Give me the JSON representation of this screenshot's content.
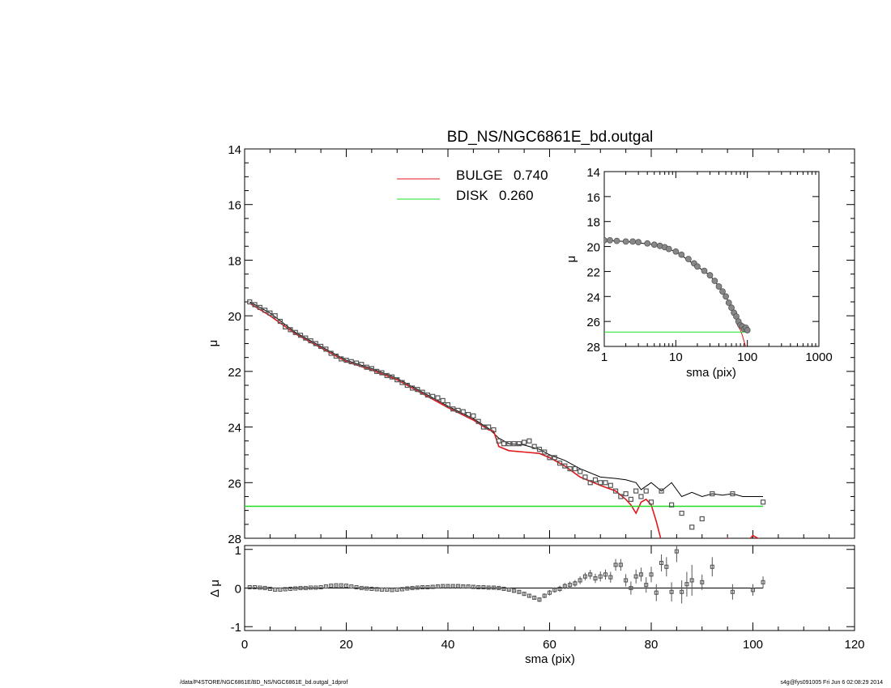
{
  "colors": {
    "bulge": "#e0181b",
    "disk": "#22dd22",
    "data": "#555555",
    "total": "#000000",
    "frame": "#000000"
  },
  "footer": {
    "left": "/data/P4STORE/NGC6861E/BD_NS/NGC6861E_bd.outgal_1dprof",
    "right": "s4g@fys091005  Fri Jun  6 02:08:29 2014"
  },
  "chart_data": [
    {
      "type": "line",
      "title": "BD_NS/NGC6861E_bd.outgal",
      "xlabel": "",
      "ylabel": "μ",
      "xlim": [
        0,
        120
      ],
      "ylim": [
        28,
        14
      ],
      "y_inverted": true,
      "yticks": [
        14,
        16,
        18,
        20,
        22,
        24,
        26,
        28
      ],
      "legend_placement": "top-center",
      "legend": [
        {
          "name": "BULGE",
          "value": "0.740",
          "color": "#e0181b"
        },
        {
          "name": "DISK",
          "value": "0.260",
          "color": "#22dd22"
        }
      ],
      "observed_points": {
        "x": [
          1,
          2,
          3,
          4,
          5,
          6,
          7,
          8,
          9,
          10,
          11,
          12,
          13,
          14,
          15,
          16,
          17,
          18,
          19,
          20,
          21,
          22,
          23,
          24,
          25,
          26,
          27,
          28,
          29,
          30,
          31,
          32,
          33,
          34,
          35,
          36,
          37,
          38,
          39,
          40,
          41,
          42,
          43,
          44,
          45,
          46,
          47,
          48,
          49,
          50,
          51,
          52,
          53,
          54,
          55,
          56,
          57,
          58,
          59,
          60,
          61,
          62,
          63,
          64,
          65,
          66,
          67,
          68,
          69,
          70,
          71,
          72,
          73,
          74,
          75,
          76,
          77,
          78,
          79,
          80,
          82,
          84,
          86,
          88,
          90,
          92,
          96,
          102
        ],
        "y": [
          19.5,
          19.6,
          19.7,
          19.8,
          19.9,
          20.0,
          20.2,
          20.4,
          20.5,
          20.6,
          20.7,
          20.8,
          20.9,
          21.0,
          21.1,
          21.2,
          21.35,
          21.45,
          21.55,
          21.6,
          21.65,
          21.7,
          21.75,
          21.85,
          21.9,
          22.0,
          22.05,
          22.15,
          22.2,
          22.3,
          22.4,
          22.5,
          22.6,
          22.65,
          22.75,
          22.85,
          22.9,
          22.95,
          23.05,
          23.2,
          23.35,
          23.4,
          23.45,
          23.55,
          23.6,
          23.8,
          24.0,
          24.0,
          24.1,
          24.5,
          24.6,
          24.6,
          24.6,
          24.6,
          24.55,
          24.5,
          24.7,
          24.8,
          24.9,
          25.1,
          25.1,
          25.3,
          25.4,
          25.5,
          25.5,
          25.6,
          25.8,
          26.0,
          25.9,
          26.0,
          26.0,
          26.1,
          26.3,
          26.5,
          26.4,
          26.6,
          26.3,
          26.5,
          26.3,
          26.7,
          26.3,
          26.8,
          27.1,
          27.6,
          27.3,
          26.4,
          26.4,
          26.7
        ]
      },
      "series": [
        {
          "name": "",
          "color": "#000000",
          "x": [
            1,
            5,
            10,
            15,
            20,
            25,
            30,
            35,
            40,
            45,
            48,
            50,
            52,
            55,
            58,
            60,
            63,
            66,
            70,
            73,
            75,
            77,
            78,
            80,
            82,
            84,
            86,
            88,
            90,
            92,
            94,
            96,
            98,
            100,
            102
          ],
          "y": [
            19.5,
            19.9,
            20.6,
            21.1,
            21.6,
            21.9,
            22.25,
            22.75,
            23.25,
            23.7,
            24.05,
            24.4,
            24.6,
            24.65,
            24.8,
            25.0,
            25.2,
            25.5,
            25.8,
            25.85,
            25.9,
            26.0,
            26.25,
            26.0,
            26.3,
            26.0,
            26.5,
            26.35,
            26.5,
            26.4,
            26.45,
            26.4,
            26.5,
            26.5,
            26.5
          ]
        },
        {
          "name": "BULGE",
          "color": "#e0181b",
          "x": [
            1,
            5,
            10,
            15,
            20,
            25,
            30,
            35,
            40,
            45,
            48,
            49,
            50,
            52,
            55,
            58,
            60,
            63,
            66,
            70,
            73,
            75,
            76,
            77,
            78,
            79,
            80,
            81,
            82,
            83,
            84,
            86,
            88,
            90,
            92,
            94,
            95,
            97,
            99,
            100,
            102
          ],
          "y": [
            19.55,
            20.0,
            20.65,
            21.15,
            21.65,
            21.95,
            22.3,
            22.8,
            23.3,
            23.75,
            24.1,
            24.15,
            24.7,
            24.85,
            24.9,
            24.95,
            25.1,
            25.4,
            25.8,
            26.1,
            26.3,
            26.6,
            26.8,
            27.1,
            26.7,
            26.6,
            26.8,
            27.4,
            28.1,
            28.6,
            28.8,
            29.5,
            28.3,
            28.5,
            28.3,
            28.1,
            28.0,
            28.4,
            28.1,
            27.9,
            28.1
          ]
        },
        {
          "name": "DISK",
          "color": "#22dd22",
          "x": [
            0,
            102
          ],
          "y": [
            26.85,
            26.85
          ]
        }
      ]
    },
    {
      "type": "scatter",
      "title": "",
      "xlabel": "sma (pix)",
      "ylabel": "Δ μ",
      "xlim": [
        0,
        120
      ],
      "ylim": [
        -1.1,
        1.1
      ],
      "yticks": [
        1,
        0,
        -1
      ],
      "xticks": [
        0,
        20,
        40,
        60,
        80,
        100,
        120
      ],
      "reference_line": {
        "x": [
          0,
          102
        ],
        "y": [
          0,
          0
        ]
      },
      "points": {
        "x": [
          1,
          2,
          3,
          4,
          5,
          6,
          7,
          8,
          9,
          10,
          11,
          12,
          13,
          14,
          15,
          16,
          17,
          18,
          19,
          20,
          21,
          22,
          23,
          24,
          25,
          26,
          27,
          28,
          29,
          30,
          31,
          32,
          33,
          34,
          35,
          36,
          37,
          38,
          39,
          40,
          41,
          42,
          43,
          44,
          45,
          46,
          47,
          48,
          49,
          50,
          51,
          52,
          53,
          54,
          55,
          56,
          57,
          58,
          59,
          60,
          61,
          62,
          63,
          64,
          65,
          66,
          67,
          68,
          69,
          70,
          71,
          72,
          73,
          74,
          75,
          76,
          77,
          78,
          79,
          80,
          81,
          82,
          83,
          84,
          85,
          86,
          87,
          88,
          90,
          92,
          96,
          100,
          102
        ],
        "y": [
          0.02,
          0.02,
          0.01,
          0.0,
          -0.02,
          -0.04,
          -0.04,
          -0.03,
          -0.02,
          -0.01,
          0.0,
          0.0,
          0.01,
          0.01,
          0.02,
          0.04,
          0.06,
          0.07,
          0.07,
          0.06,
          0.04,
          0.02,
          0.0,
          -0.01,
          -0.02,
          -0.03,
          -0.04,
          -0.04,
          -0.05,
          -0.04,
          -0.03,
          -0.01,
          0.0,
          0.01,
          0.02,
          0.02,
          0.03,
          0.04,
          0.05,
          0.05,
          0.05,
          0.05,
          0.04,
          0.04,
          0.03,
          0.02,
          0.02,
          0.01,
          0.01,
          0.0,
          -0.02,
          -0.04,
          -0.07,
          -0.1,
          -0.15,
          -0.2,
          -0.25,
          -0.3,
          -0.2,
          -0.12,
          -0.05,
          -0.02,
          0.05,
          0.08,
          0.12,
          0.2,
          0.3,
          0.35,
          0.25,
          0.3,
          0.35,
          0.28,
          0.6,
          0.6,
          0.2,
          0.0,
          0.3,
          0.35,
          0.08,
          0.35,
          -0.12,
          0.65,
          0.55,
          -0.1,
          0.95,
          -0.1,
          0.1,
          0.2,
          0.15,
          0.55,
          -0.1,
          -0.05,
          0.15
        ],
        "err": [
          0.02,
          0.02,
          0.02,
          0.02,
          0.02,
          0.02,
          0.02,
          0.02,
          0.02,
          0.02,
          0.02,
          0.02,
          0.02,
          0.02,
          0.02,
          0.02,
          0.02,
          0.02,
          0.02,
          0.02,
          0.02,
          0.02,
          0.02,
          0.02,
          0.02,
          0.02,
          0.02,
          0.02,
          0.02,
          0.02,
          0.02,
          0.03,
          0.03,
          0.03,
          0.03,
          0.03,
          0.03,
          0.03,
          0.03,
          0.03,
          0.03,
          0.03,
          0.03,
          0.03,
          0.03,
          0.03,
          0.03,
          0.03,
          0.03,
          0.04,
          0.04,
          0.05,
          0.05,
          0.05,
          0.05,
          0.05,
          0.05,
          0.06,
          0.06,
          0.07,
          0.07,
          0.08,
          0.08,
          0.09,
          0.09,
          0.1,
          0.1,
          0.12,
          0.12,
          0.13,
          0.13,
          0.14,
          0.15,
          0.15,
          0.16,
          0.17,
          0.18,
          0.18,
          0.2,
          0.2,
          0.22,
          0.22,
          0.25,
          0.25,
          0.28,
          0.3,
          0.32,
          0.4,
          0.2,
          0.25,
          0.2,
          0.15,
          0.15
        ]
      }
    },
    {
      "type": "line",
      "title": "",
      "xlabel": "sma (pix)",
      "ylabel": "μ",
      "x_scale": "log",
      "xlim": [
        1,
        1000
      ],
      "ylim": [
        28,
        14
      ],
      "y_inverted": true,
      "xticks": [
        1,
        10,
        100,
        1000
      ],
      "yticks": [
        14,
        16,
        18,
        20,
        22,
        24,
        26,
        28
      ],
      "observed_points": {
        "x": [
          1,
          1.2,
          1.5,
          2,
          2.5,
          3,
          4,
          5,
          6,
          7,
          8,
          10,
          12,
          15,
          18,
          20,
          25,
          30,
          35,
          40,
          45,
          50,
          55,
          60,
          65,
          70,
          75,
          80,
          85,
          90,
          95,
          100
        ],
        "y": [
          19.5,
          19.5,
          19.55,
          19.6,
          19.6,
          19.65,
          19.75,
          19.85,
          19.95,
          20.05,
          20.2,
          20.4,
          20.65,
          21.0,
          21.35,
          21.6,
          21.95,
          22.3,
          22.75,
          23.2,
          23.6,
          24.0,
          24.5,
          24.9,
          25.3,
          25.6,
          26.0,
          26.3,
          26.4,
          26.6,
          26.5,
          26.7
        ]
      },
      "series": [
        {
          "name": "",
          "color": "#000000",
          "x": [
            1,
            2,
            5,
            10,
            20,
            30,
            40,
            50,
            60,
            70,
            80,
            90,
            100
          ],
          "y": [
            19.5,
            19.6,
            19.85,
            20.4,
            21.6,
            22.3,
            23.2,
            24.0,
            24.9,
            25.6,
            26.3,
            26.5,
            26.5
          ]
        },
        {
          "name": "BULGE",
          "color": "#e0181b",
          "x": [
            70,
            80,
            85,
            90,
            95,
            100
          ],
          "y": [
            26.1,
            26.7,
            27.1,
            27.6,
            28.0,
            28.1
          ]
        },
        {
          "name": "DISK",
          "color": "#22dd22",
          "x": [
            1,
            102
          ],
          "y": [
            26.85,
            26.85
          ]
        }
      ]
    }
  ]
}
